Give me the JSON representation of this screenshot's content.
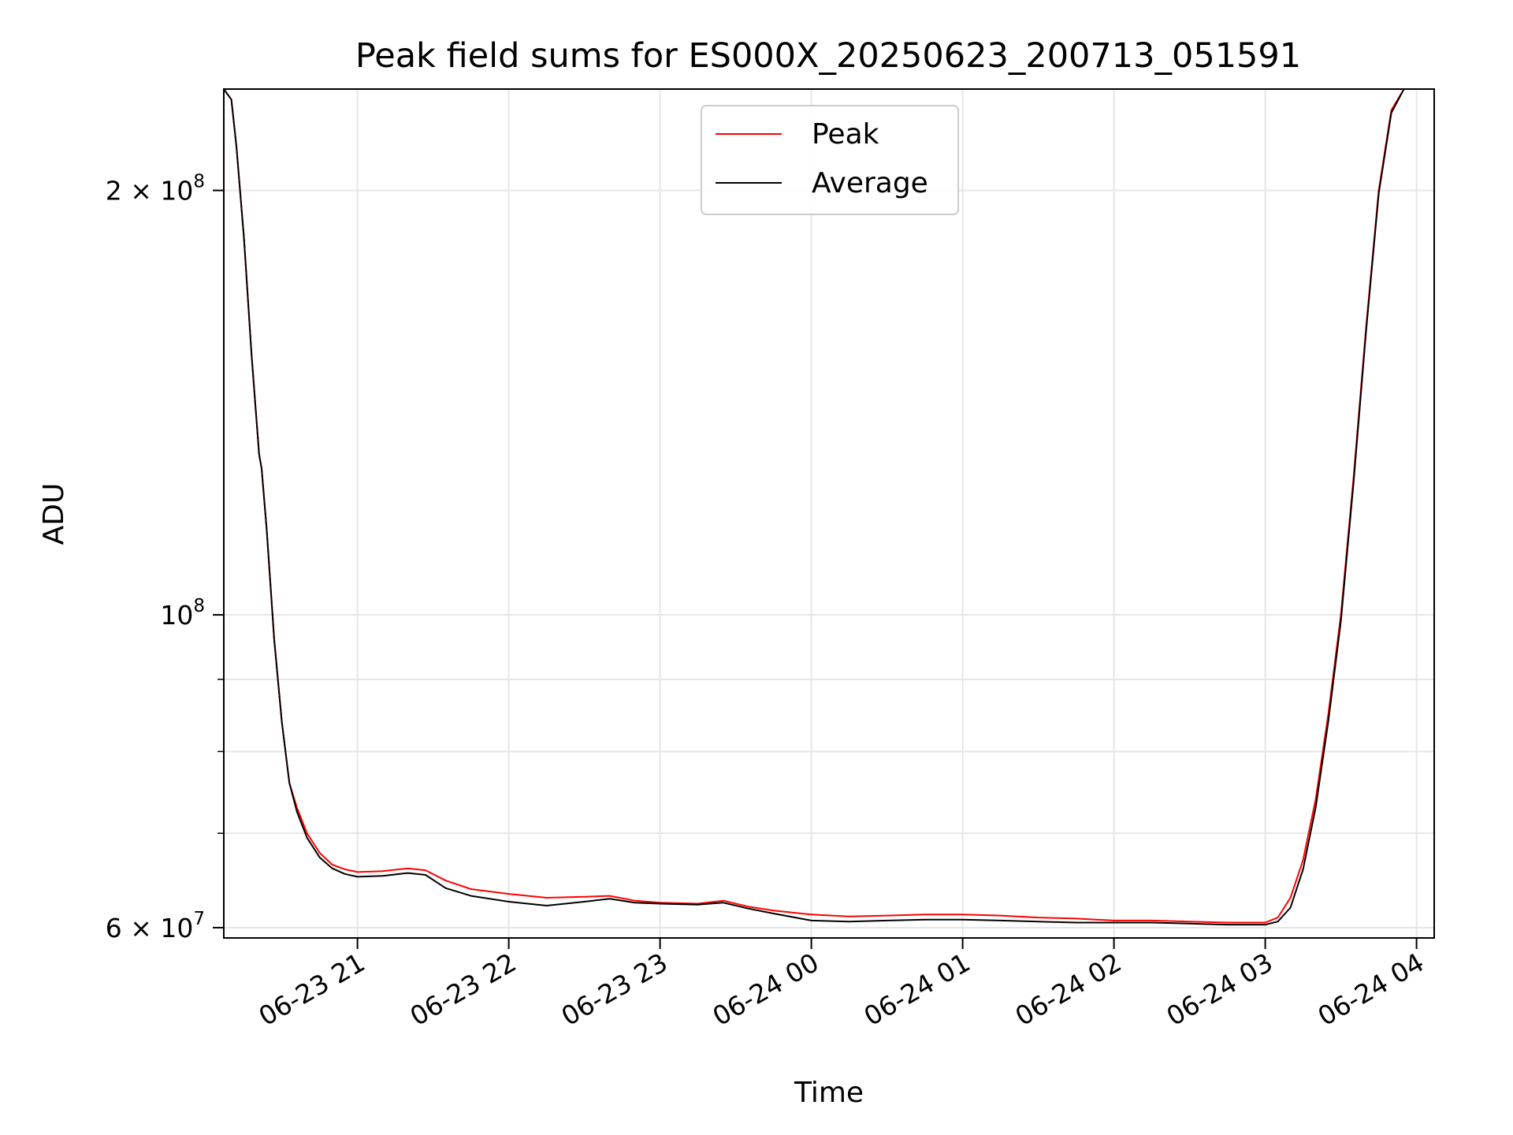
{
  "chart_data": {
    "type": "line",
    "title": "Peak field sums for ES000X_20250623_200713_051591",
    "xlabel": "Time",
    "ylabel": "ADU",
    "yscale": "log",
    "grid": true,
    "legend_position": "top-center",
    "xlim": [
      "2025-06-23 20:07",
      "2025-06-24 04:07"
    ],
    "ylim": [
      59000000,
      236000000
    ],
    "x_ticks": [
      {
        "value": "2025-06-23 21:00",
        "label": "06-23 21"
      },
      {
        "value": "2025-06-23 22:00",
        "label": "06-23 22"
      },
      {
        "value": "2025-06-23 23:00",
        "label": "06-23 23"
      },
      {
        "value": "2025-06-24 00:00",
        "label": "06-24 00"
      },
      {
        "value": "2025-06-24 01:00",
        "label": "06-24 01"
      },
      {
        "value": "2025-06-24 02:00",
        "label": "06-24 02"
      },
      {
        "value": "2025-06-24 03:00",
        "label": "06-24 03"
      },
      {
        "value": "2025-06-24 04:00",
        "label": "06-24 04"
      }
    ],
    "y_major_ticks": [
      {
        "value": 60000000,
        "mantissa": "6",
        "exponent": "7"
      },
      {
        "value": 100000000,
        "mantissa": "",
        "exponent": "8"
      },
      {
        "value": 200000000,
        "mantissa": "2",
        "exponent": "8"
      }
    ],
    "y_minor_ticks": [
      70000000,
      80000000,
      90000000
    ],
    "series": [
      {
        "name": "Peak",
        "color": "#ff0000",
        "points": [
          [
            "2025-06-23 20:07",
            236000000
          ],
          [
            "2025-06-23 20:10",
            232000000
          ],
          [
            "2025-06-23 20:12",
            215000000
          ],
          [
            "2025-06-23 20:15",
            185000000
          ],
          [
            "2025-06-23 20:18",
            153000000
          ],
          [
            "2025-06-23 20:21",
            130000000
          ],
          [
            "2025-06-23 20:22",
            127000000
          ],
          [
            "2025-06-23 20:24",
            115000000
          ],
          [
            "2025-06-23 20:27",
            96000000
          ],
          [
            "2025-06-23 20:30",
            84000000
          ],
          [
            "2025-06-23 20:33",
            76000000
          ],
          [
            "2025-06-23 20:36",
            73000000
          ],
          [
            "2025-06-23 20:40",
            70000000
          ],
          [
            "2025-06-23 20:45",
            67800000
          ],
          [
            "2025-06-23 20:50",
            66500000
          ],
          [
            "2025-06-23 20:55",
            66000000
          ],
          [
            "2025-06-23 21:00",
            65700000
          ],
          [
            "2025-06-23 21:10",
            65800000
          ],
          [
            "2025-06-23 21:20",
            66100000
          ],
          [
            "2025-06-23 21:27",
            65900000
          ],
          [
            "2025-06-23 21:35",
            64800000
          ],
          [
            "2025-06-23 21:45",
            63900000
          ],
          [
            "2025-06-23 22:00",
            63400000
          ],
          [
            "2025-06-23 22:15",
            63000000
          ],
          [
            "2025-06-23 22:30",
            63100000
          ],
          [
            "2025-06-23 22:40",
            63200000
          ],
          [
            "2025-06-23 22:50",
            62700000
          ],
          [
            "2025-06-23 23:00",
            62500000
          ],
          [
            "2025-06-23 23:15",
            62400000
          ],
          [
            "2025-06-23 23:25",
            62700000
          ],
          [
            "2025-06-23 23:35",
            62100000
          ],
          [
            "2025-06-23 23:45",
            61700000
          ],
          [
            "2025-06-24 00:00",
            61300000
          ],
          [
            "2025-06-24 00:15",
            61100000
          ],
          [
            "2025-06-24 00:30",
            61200000
          ],
          [
            "2025-06-24 00:45",
            61300000
          ],
          [
            "2025-06-24 01:00",
            61300000
          ],
          [
            "2025-06-24 01:15",
            61200000
          ],
          [
            "2025-06-24 01:30",
            61000000
          ],
          [
            "2025-06-24 01:45",
            60900000
          ],
          [
            "2025-06-24 02:00",
            60700000
          ],
          [
            "2025-06-24 02:15",
            60700000
          ],
          [
            "2025-06-24 02:30",
            60600000
          ],
          [
            "2025-06-24 02:45",
            60500000
          ],
          [
            "2025-06-24 03:00",
            60500000
          ],
          [
            "2025-06-24 03:05",
            61000000
          ],
          [
            "2025-06-24 03:10",
            63000000
          ],
          [
            "2025-06-24 03:15",
            67000000
          ],
          [
            "2025-06-24 03:20",
            74000000
          ],
          [
            "2025-06-24 03:25",
            85000000
          ],
          [
            "2025-06-24 03:30",
            100000000
          ],
          [
            "2025-06-24 03:35",
            125000000
          ],
          [
            "2025-06-24 03:40",
            160000000
          ],
          [
            "2025-06-24 03:45",
            200000000
          ],
          [
            "2025-06-24 03:50",
            228000000
          ],
          [
            "2025-06-24 03:55",
            236000000
          ],
          [
            "2025-06-24 04:00",
            236000000
          ]
        ]
      },
      {
        "name": "Average",
        "color": "#000000",
        "points": [
          [
            "2025-06-23 20:07",
            236000000
          ],
          [
            "2025-06-23 20:10",
            232000000
          ],
          [
            "2025-06-23 20:12",
            215000000
          ],
          [
            "2025-06-23 20:15",
            185000000
          ],
          [
            "2025-06-23 20:18",
            153000000
          ],
          [
            "2025-06-23 20:21",
            130000000
          ],
          [
            "2025-06-23 20:22",
            127000000
          ],
          [
            "2025-06-23 20:24",
            115000000
          ],
          [
            "2025-06-23 20:27",
            96000000
          ],
          [
            "2025-06-23 20:30",
            84000000
          ],
          [
            "2025-06-23 20:33",
            76000000
          ],
          [
            "2025-06-23 20:36",
            72500000
          ],
          [
            "2025-06-23 20:40",
            69500000
          ],
          [
            "2025-06-23 20:45",
            67300000
          ],
          [
            "2025-06-23 20:50",
            66100000
          ],
          [
            "2025-06-23 20:55",
            65500000
          ],
          [
            "2025-06-23 21:00",
            65200000
          ],
          [
            "2025-06-23 21:10",
            65300000
          ],
          [
            "2025-06-23 21:20",
            65600000
          ],
          [
            "2025-06-23 21:27",
            65400000
          ],
          [
            "2025-06-23 21:35",
            64000000
          ],
          [
            "2025-06-23 21:45",
            63200000
          ],
          [
            "2025-06-23 22:00",
            62600000
          ],
          [
            "2025-06-23 22:15",
            62200000
          ],
          [
            "2025-06-23 22:30",
            62600000
          ],
          [
            "2025-06-23 22:40",
            62900000
          ],
          [
            "2025-06-23 22:50",
            62500000
          ],
          [
            "2025-06-23 23:00",
            62400000
          ],
          [
            "2025-06-23 23:15",
            62300000
          ],
          [
            "2025-06-23 23:25",
            62500000
          ],
          [
            "2025-06-23 23:35",
            61900000
          ],
          [
            "2025-06-23 23:45",
            61400000
          ],
          [
            "2025-06-24 00:00",
            60700000
          ],
          [
            "2025-06-24 00:15",
            60600000
          ],
          [
            "2025-06-24 00:30",
            60700000
          ],
          [
            "2025-06-24 00:45",
            60800000
          ],
          [
            "2025-06-24 01:00",
            60800000
          ],
          [
            "2025-06-24 01:15",
            60700000
          ],
          [
            "2025-06-24 01:30",
            60600000
          ],
          [
            "2025-06-24 01:45",
            60500000
          ],
          [
            "2025-06-24 02:00",
            60500000
          ],
          [
            "2025-06-24 02:15",
            60500000
          ],
          [
            "2025-06-24 02:30",
            60400000
          ],
          [
            "2025-06-24 02:45",
            60300000
          ],
          [
            "2025-06-24 03:00",
            60300000
          ],
          [
            "2025-06-24 03:05",
            60600000
          ],
          [
            "2025-06-24 03:10",
            62000000
          ],
          [
            "2025-06-24 03:15",
            66000000
          ],
          [
            "2025-06-24 03:20",
            73000000
          ],
          [
            "2025-06-24 03:25",
            84000000
          ],
          [
            "2025-06-24 03:30",
            99000000
          ],
          [
            "2025-06-24 03:35",
            124000000
          ],
          [
            "2025-06-24 03:40",
            159000000
          ],
          [
            "2025-06-24 03:45",
            199000000
          ],
          [
            "2025-06-24 03:50",
            227000000
          ],
          [
            "2025-06-24 03:55",
            236000000
          ],
          [
            "2025-06-24 04:00",
            236000000
          ]
        ]
      }
    ]
  }
}
